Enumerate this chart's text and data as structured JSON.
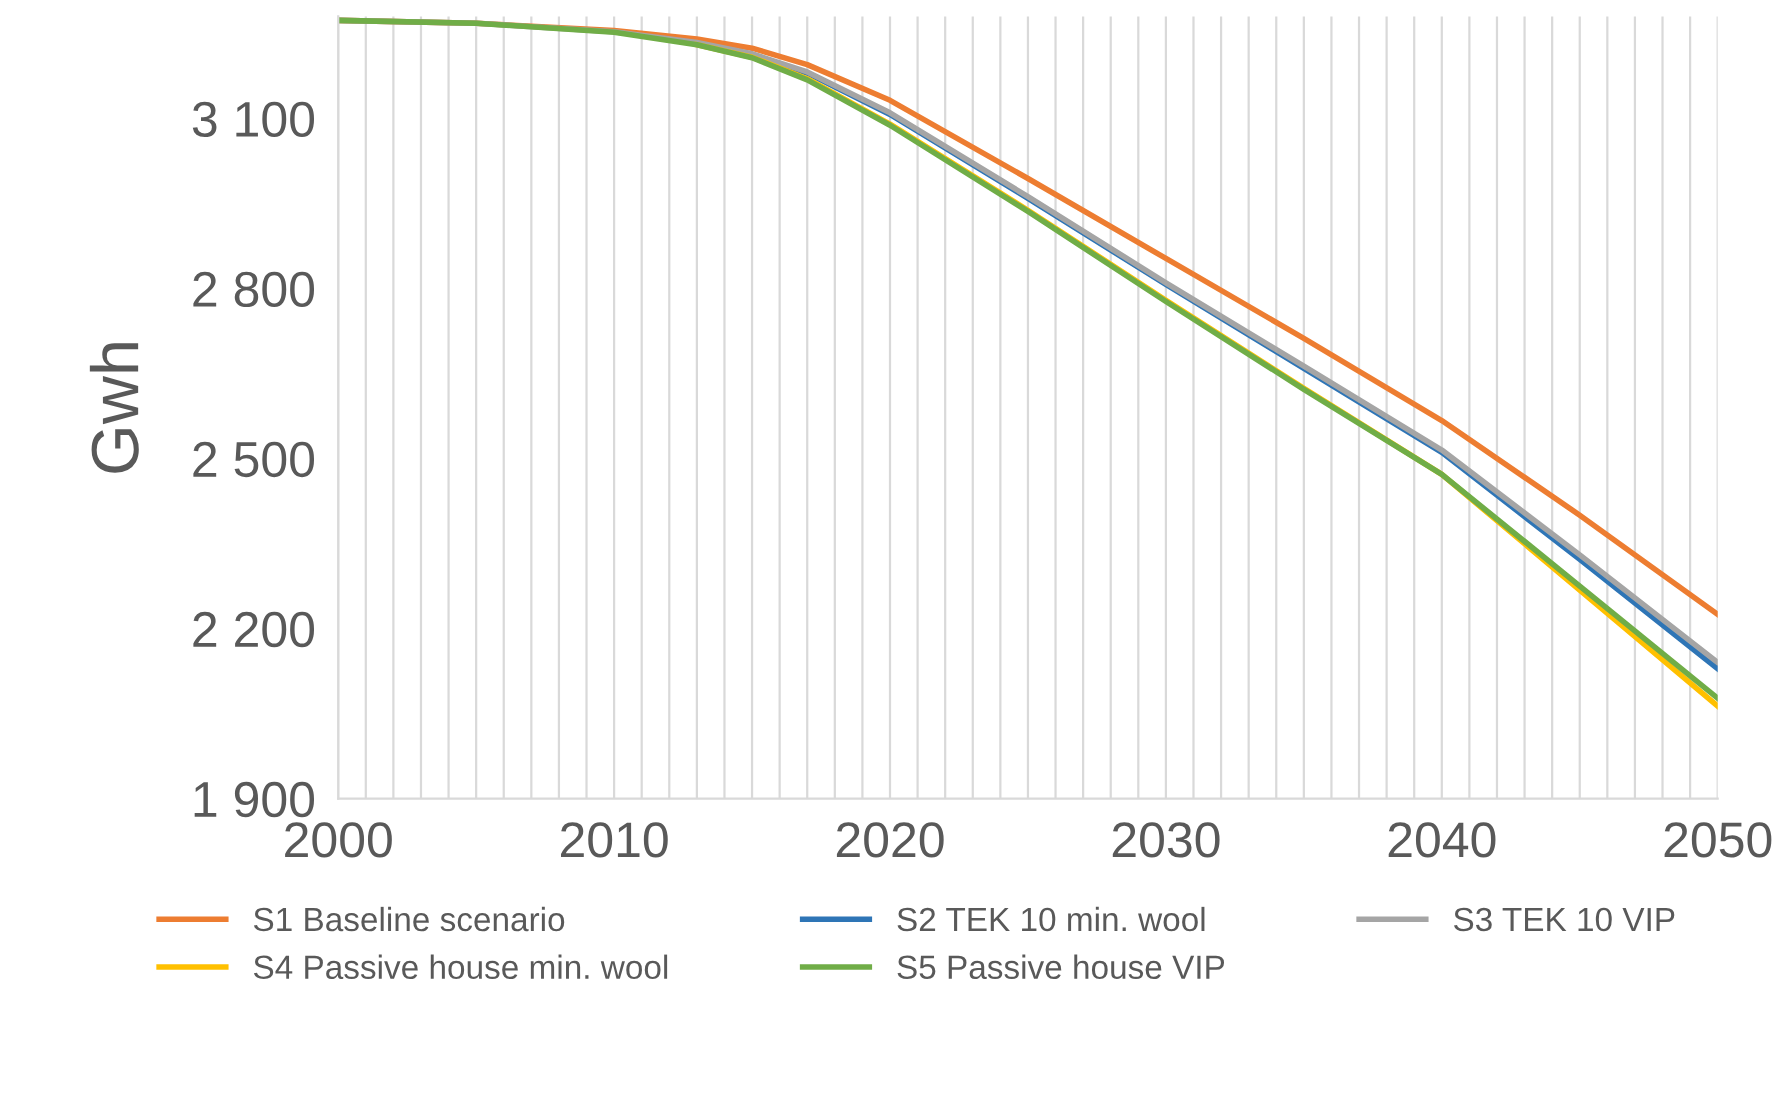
{
  "chart_data": {
    "type": "line",
    "ylabel": "Gwh",
    "x": [
      2000,
      2005,
      2010,
      2013,
      2015,
      2017,
      2020,
      2025,
      2030,
      2035,
      2040,
      2045,
      2050
    ],
    "series": [
      {
        "name": "S1 Baseline scenario",
        "color": "#ed7d31",
        "values": [
          3273,
          3268,
          3255,
          3240,
          3224,
          3195,
          3132,
          2994,
          2853,
          2712,
          2567,
          2400,
          2225
        ]
      },
      {
        "name": "S2 TEK 10 min. wool",
        "color": "#2e75b6",
        "values": [
          null,
          null,
          null,
          null,
          3213,
          3180,
          3107,
          2959,
          2807,
          2659,
          2511,
          2322,
          2129
        ]
      },
      {
        "name": "S3 TEK 10 VIP",
        "color": "#a5a5a5",
        "values": [
          3273,
          3268,
          3253,
          3234,
          3214,
          3182,
          3110,
          2962,
          2810,
          2663,
          2515,
          2330,
          2140
        ]
      },
      {
        "name": "S4 Passive house min. wool",
        "color": "#ffc000",
        "values": [
          null,
          null,
          null,
          3230,
          3208,
          3170,
          3090,
          2938,
          2779,
          2624,
          2472,
          2268,
          2063
        ]
      },
      {
        "name": "S5 Passive house VIP",
        "color": "#70ad47",
        "values": [
          3273,
          3268,
          3252,
          3230,
          3207,
          3168,
          3088,
          2936,
          2777,
          2622,
          2472,
          2275,
          2077
        ]
      }
    ],
    "xlim": [
      2000,
      2050
    ],
    "ylim": [
      1900,
      3280
    ],
    "xticks": [
      2000,
      2010,
      2020,
      2030,
      2040,
      2050
    ],
    "yticks": [
      {
        "value": 1900,
        "label": "1 900"
      },
      {
        "value": 2200,
        "label": "2 200"
      },
      {
        "value": 2500,
        "label": "2 500"
      },
      {
        "value": 2800,
        "label": "2 800"
      },
      {
        "value": 3100,
        "label": "3 100"
      }
    ],
    "grid": "x",
    "legend": "bottom",
    "marker": "none",
    "line_style": "solid"
  }
}
